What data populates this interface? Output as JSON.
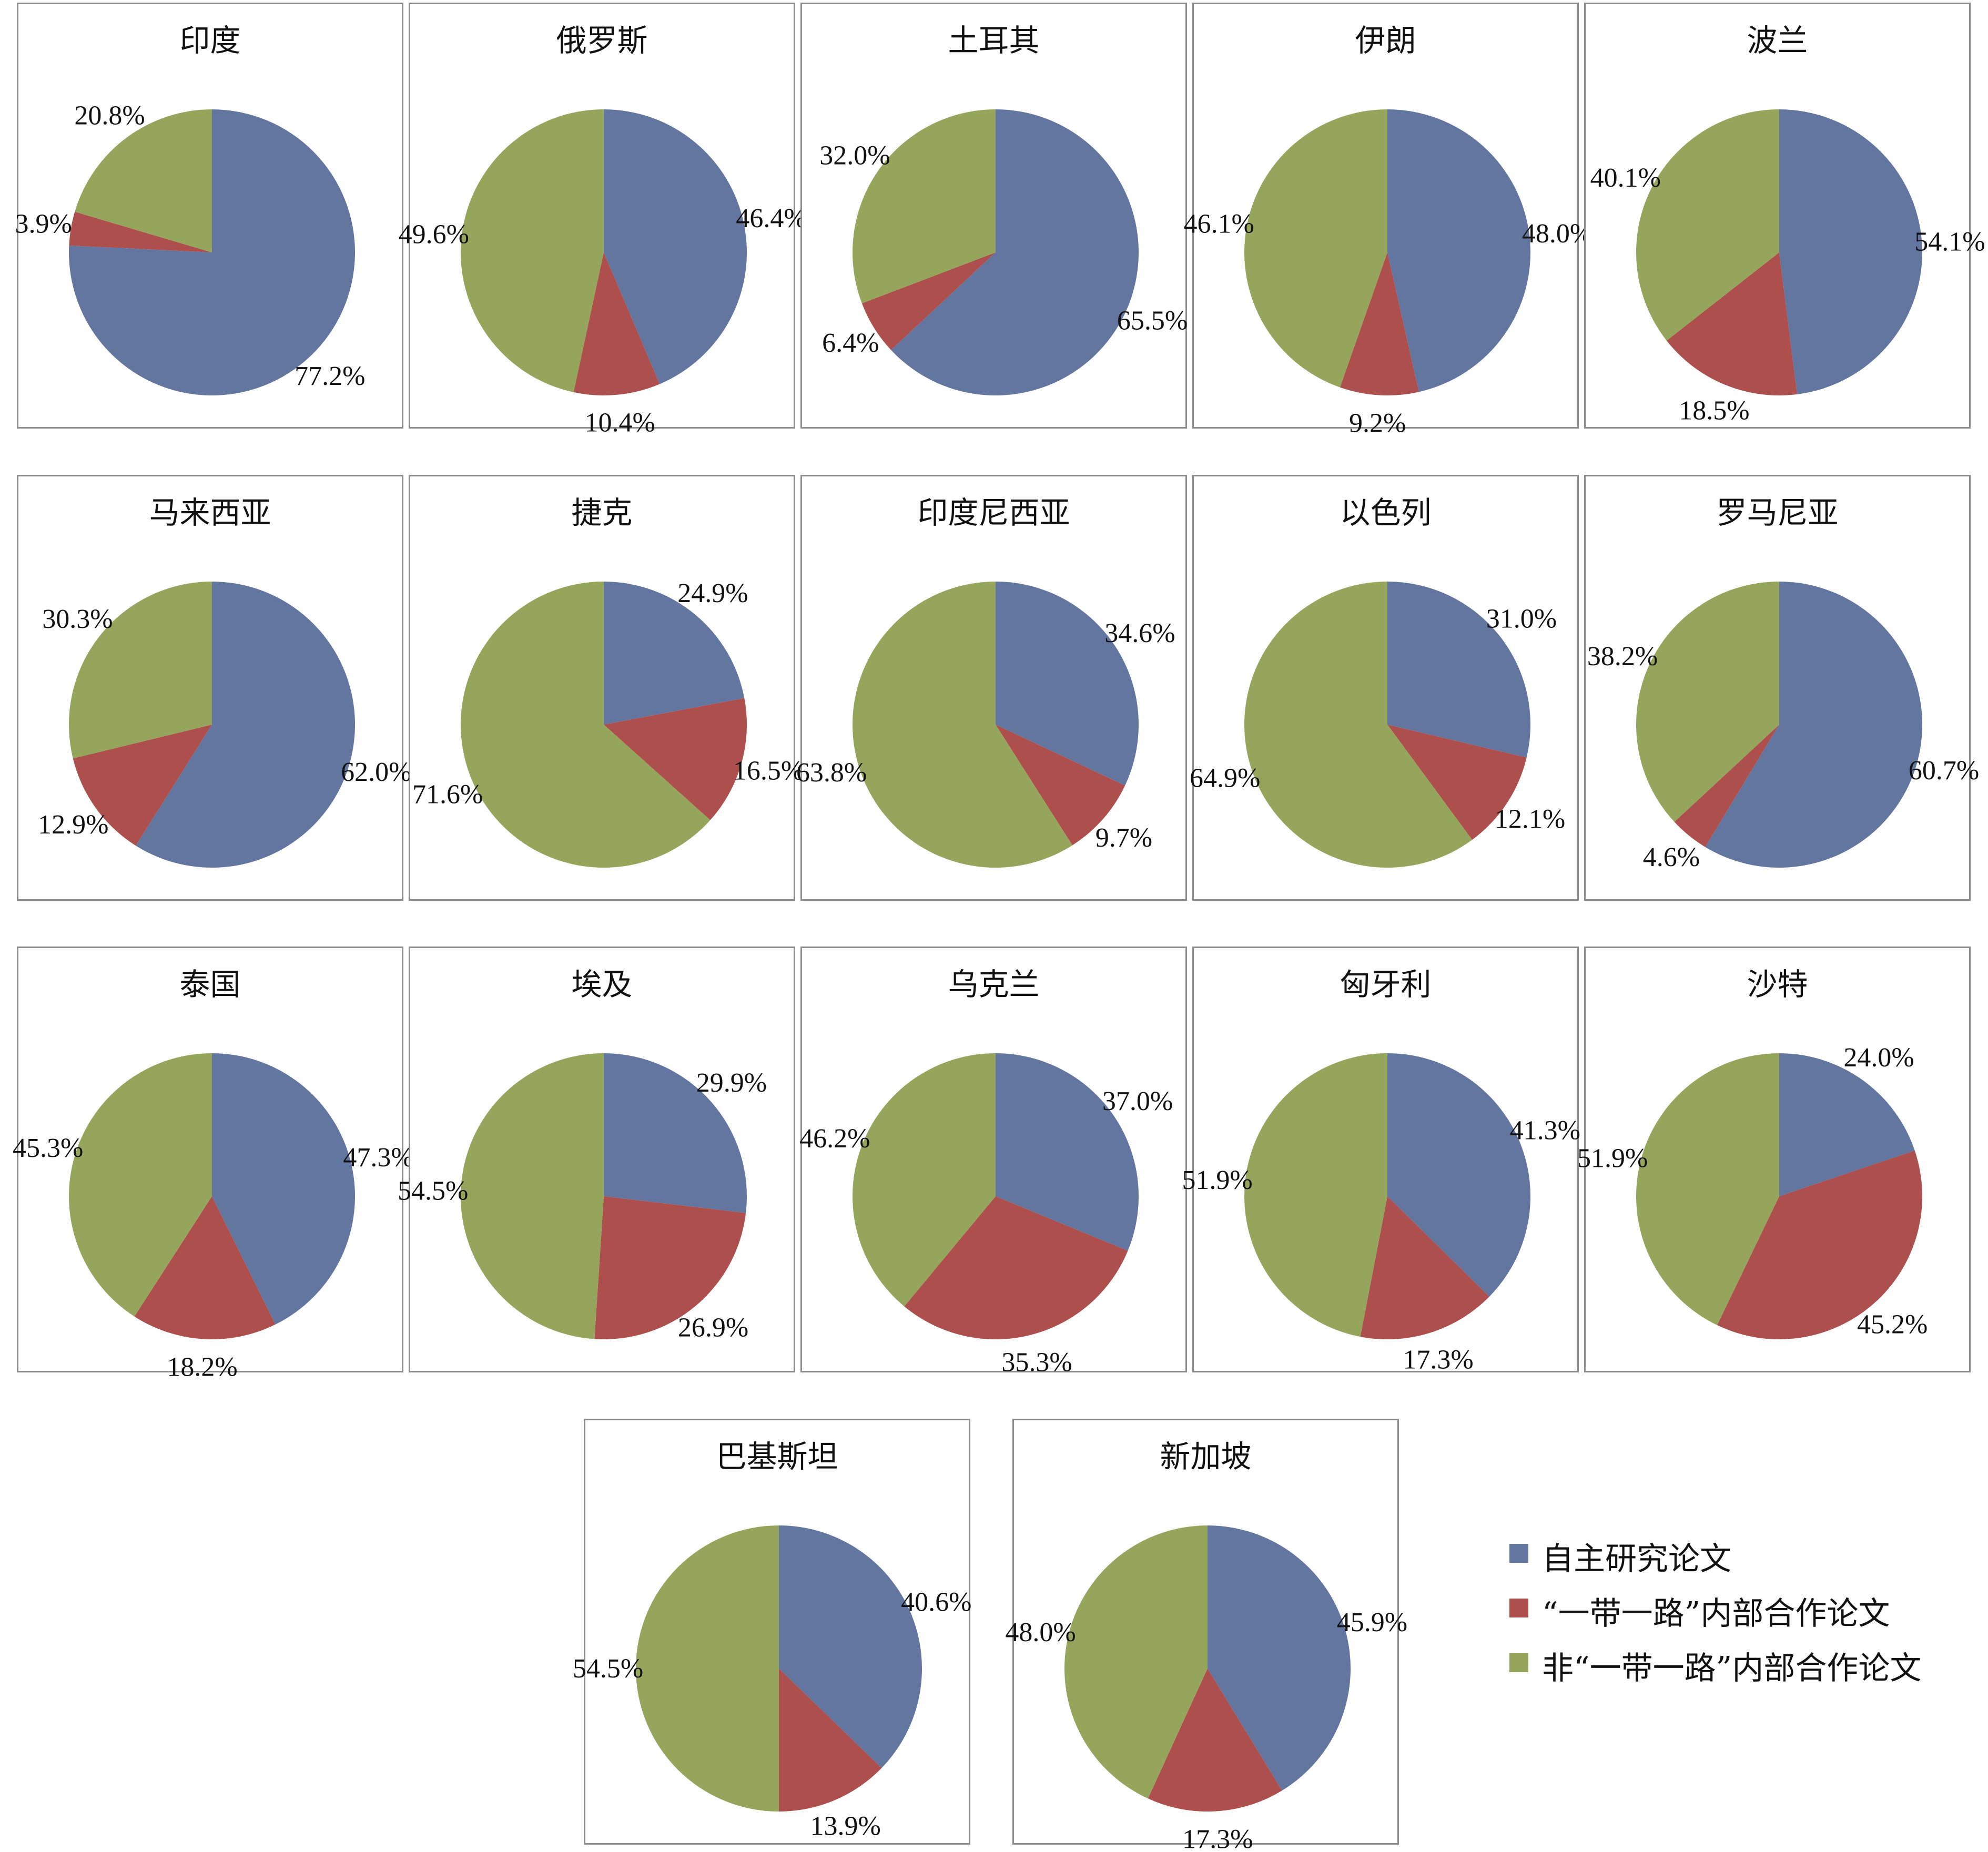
{
  "chart_data": {
    "type": "pie",
    "series_names": [
      "自主研究论文",
      "“一带一路”内部合作论文",
      "非“一带一路”内部合作论文"
    ],
    "colors": [
      "#63769f",
      "#ad4f4d",
      "#95a65c"
    ],
    "charts": [
      {
        "title": "印度",
        "values": [
          77.2,
          3.9,
          20.8
        ],
        "labels": [
          "77.2%",
          "3.9%",
          "20.8%"
        ]
      },
      {
        "title": "俄罗斯",
        "values": [
          46.4,
          10.4,
          49.6
        ],
        "labels": [
          "46.4%",
          "10.4%",
          "49.6%"
        ]
      },
      {
        "title": "土耳其",
        "values": [
          65.5,
          6.4,
          32.0
        ],
        "labels": [
          "65.5%",
          "6.4%",
          "32.0%"
        ]
      },
      {
        "title": "伊朗",
        "values": [
          48.0,
          9.2,
          46.1
        ],
        "labels": [
          "48.0%",
          "9.2%",
          "46.1%"
        ]
      },
      {
        "title": "波兰",
        "values": [
          54.1,
          18.5,
          40.1
        ],
        "labels": [
          "54.1%",
          "18.5%",
          "40.1%"
        ]
      },
      {
        "title": "马来西亚",
        "values": [
          62.0,
          12.9,
          30.3
        ],
        "labels": [
          "62.0%",
          "12.9%",
          "30.3%"
        ]
      },
      {
        "title": "捷克",
        "values": [
          24.9,
          16.5,
          71.6
        ],
        "labels": [
          "24.9%",
          "16.5%",
          "71.6%"
        ]
      },
      {
        "title": "印度尼西亚",
        "values": [
          34.6,
          9.7,
          63.8
        ],
        "labels": [
          "34.6%",
          "9.7%",
          "63.8%"
        ]
      },
      {
        "title": "以色列",
        "values": [
          31.0,
          12.1,
          64.9
        ],
        "labels": [
          "31.0%",
          "12.1%",
          "64.9%"
        ]
      },
      {
        "title": "罗马尼亚",
        "values": [
          60.7,
          4.6,
          38.2
        ],
        "labels": [
          "60.7%",
          "4.6%",
          "38.2%"
        ]
      },
      {
        "title": "泰国",
        "values": [
          47.3,
          18.2,
          45.3
        ],
        "labels": [
          "47.3%",
          "18.2%",
          "45.3%"
        ]
      },
      {
        "title": "埃及",
        "values": [
          29.9,
          26.9,
          54.5
        ],
        "labels": [
          "29.9%",
          "26.9%",
          "54.5%"
        ]
      },
      {
        "title": "乌克兰",
        "values": [
          37.0,
          35.3,
          46.2
        ],
        "labels": [
          "37.0%",
          "35.3%",
          "46.2%"
        ]
      },
      {
        "title": "匈牙利",
        "values": [
          41.3,
          17.3,
          51.9
        ],
        "labels": [
          "41.3%",
          "17.3%",
          "51.9%"
        ]
      },
      {
        "title": "沙特",
        "values": [
          24.0,
          45.2,
          51.9
        ],
        "labels": [
          "24.0%",
          "45.2%",
          "51.9%"
        ]
      },
      {
        "title": "巴基斯坦",
        "values": [
          40.6,
          13.9,
          54.5
        ],
        "labels": [
          "40.6%",
          "13.9%",
          "54.5%"
        ]
      },
      {
        "title": "新加坡",
        "values": [
          45.9,
          17.3,
          48.0
        ],
        "labels": [
          "45.9%",
          "17.3%",
          "48.0%"
        ]
      }
    ]
  },
  "legend": {
    "items": [
      {
        "label": "自主研究论文",
        "color": "#63769f"
      },
      {
        "label": "“一带一路”内部合作论文",
        "color": "#ad4f4d"
      },
      {
        "label": "非“一带一路”内部合作论文",
        "color": "#95a65c"
      }
    ]
  }
}
